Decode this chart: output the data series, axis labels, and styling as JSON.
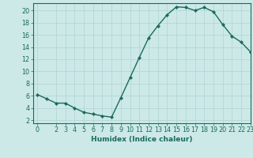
{
  "x": [
    0,
    1,
    2,
    3,
    4,
    5,
    6,
    7,
    8,
    9,
    10,
    11,
    12,
    13,
    14,
    15,
    16,
    17,
    18,
    19,
    20,
    21,
    22,
    23
  ],
  "y": [
    6.2,
    5.5,
    4.8,
    4.8,
    4.0,
    3.3,
    3.0,
    2.7,
    2.5,
    5.7,
    9.0,
    12.3,
    15.5,
    17.5,
    19.3,
    20.6,
    20.5,
    20.0,
    20.5,
    19.8,
    17.7,
    15.8,
    14.8,
    13.2
  ],
  "line_color": "#1a6b5a",
  "marker": "D",
  "markersize": 2.2,
  "linewidth": 1.0,
  "bg_color": "#cce9e7",
  "grid_color": "#aed4d1",
  "xlabel": "Humidex (Indice chaleur)",
  "xlim": [
    -0.5,
    23
  ],
  "ylim": [
    1.5,
    21.2
  ],
  "yticks": [
    2,
    4,
    6,
    8,
    10,
    12,
    14,
    16,
    18,
    20
  ],
  "xticks": [
    0,
    2,
    3,
    4,
    5,
    6,
    7,
    8,
    9,
    10,
    11,
    12,
    13,
    14,
    15,
    16,
    17,
    18,
    19,
    20,
    21,
    22,
    23
  ],
  "xlabel_fontsize": 6.5,
  "tick_fontsize": 5.8,
  "tick_color": "#1a6b5a",
  "spine_color": "#1a6b5a"
}
